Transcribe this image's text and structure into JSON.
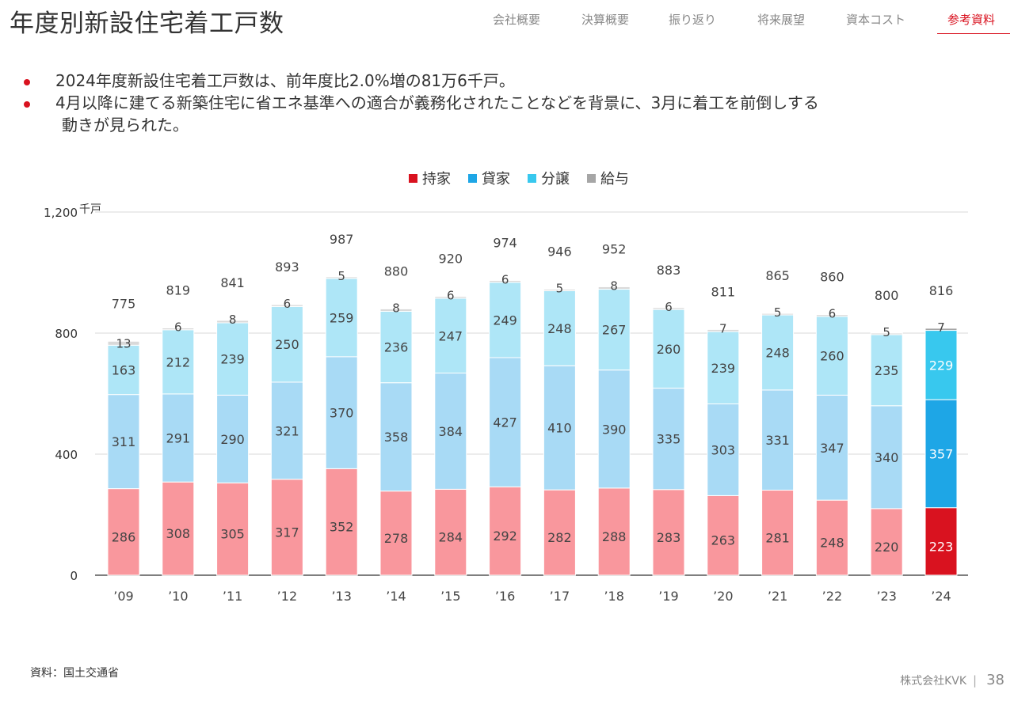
{
  "header": {
    "title": "年度別新設住宅着工戸数",
    "nav": [
      {
        "label": "会社概要",
        "active": false
      },
      {
        "label": "決算概要",
        "active": false
      },
      {
        "label": "振り返り",
        "active": false
      },
      {
        "label": "将来展望",
        "active": false
      },
      {
        "label": "資本コスト",
        "active": false
      },
      {
        "label": "参考資料",
        "active": true
      }
    ]
  },
  "bullets": [
    {
      "text": "2024年度新設住宅着工戸数は、前年度比2.0%増の81万6千戸。"
    },
    {
      "line1": "4月以降に建てる新築住宅に省エネ基準への適合が義務化されたことなどを背景に、3月に着工を前倒しする",
      "line2": "動きが見られた。"
    }
  ],
  "legend": [
    {
      "label": "持家",
      "color": "#d9121f"
    },
    {
      "label": "貸家",
      "color": "#1ea6e6"
    },
    {
      "label": "分譲",
      "color": "#38c8ee"
    },
    {
      "label": "給与",
      "color": "#a6a6a6"
    }
  ],
  "chart_data": {
    "type": "bar",
    "stacked": true,
    "unit": "千戸",
    "ylim": [
      0,
      1200
    ],
    "yticks": [
      "0",
      "400",
      "800",
      "1,200"
    ],
    "grid": true,
    "legend_position": "top",
    "categories": [
      "’09",
      "’10",
      "’11",
      "’12",
      "’13",
      "’14",
      "’15",
      "’16",
      "’17",
      "’18",
      "’19",
      "’20",
      "’21",
      "’22",
      "’23",
      "’24"
    ],
    "series": [
      {
        "name": "持家",
        "color": "#f9979d",
        "highlight_color": "#d9121f",
        "values": [
          286,
          308,
          305,
          317,
          352,
          278,
          284,
          292,
          282,
          288,
          283,
          263,
          281,
          248,
          220,
          223
        ]
      },
      {
        "name": "貸家",
        "color": "#a8daf5",
        "highlight_color": "#1ea6e6",
        "values": [
          311,
          291,
          290,
          321,
          370,
          358,
          384,
          427,
          410,
          390,
          335,
          303,
          331,
          347,
          340,
          357
        ]
      },
      {
        "name": "分譲",
        "color": "#aee6f7",
        "highlight_color": "#38c8ee",
        "values": [
          163,
          212,
          239,
          250,
          259,
          236,
          247,
          249,
          248,
          267,
          260,
          239,
          248,
          260,
          235,
          229
        ]
      },
      {
        "name": "給与",
        "color": "#d9d9d9",
        "highlight_color": "#a6a6a6",
        "values": [
          13,
          6,
          8,
          6,
          5,
          8,
          6,
          6,
          5,
          8,
          6,
          7,
          5,
          6,
          5,
          7
        ]
      }
    ],
    "totals": [
      775,
      819,
      841,
      893,
      987,
      880,
      920,
      974,
      946,
      952,
      883,
      811,
      865,
      860,
      800,
      816
    ],
    "highlight_index": 15
  },
  "source": "資料：国土交通省",
  "footer": {
    "company": "株式会社KVK",
    "separator": "|",
    "page": "38"
  }
}
